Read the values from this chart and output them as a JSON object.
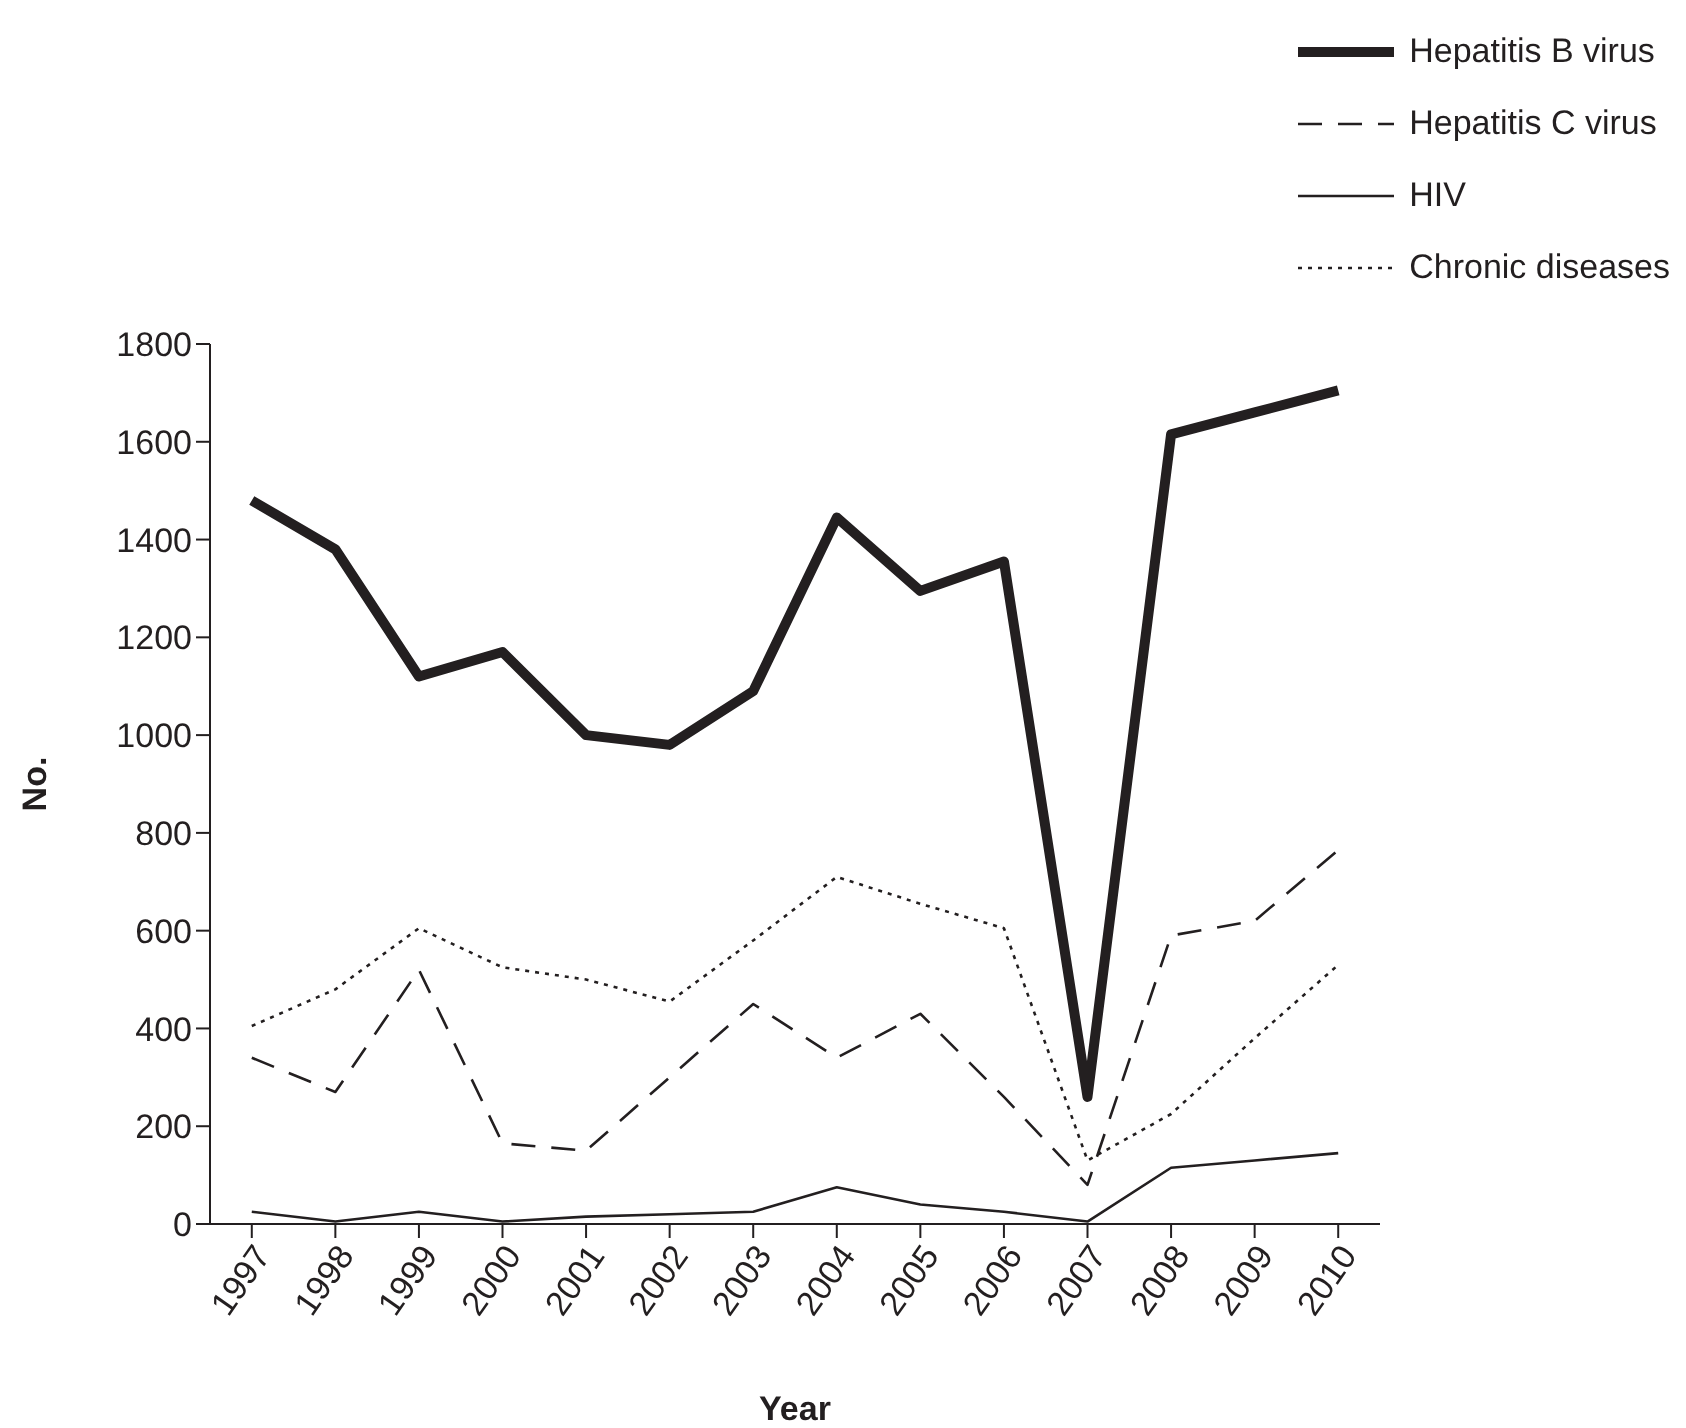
{
  "chart_data": {
    "type": "line",
    "xlabel": "Year",
    "ylabel": "No.",
    "categories": [
      "1997",
      "1998",
      "1999",
      "2000",
      "2001",
      "2002",
      "2003",
      "2004",
      "2005",
      "2006",
      "2007",
      "2008",
      "2009",
      "2010"
    ],
    "series": [
      {
        "name": "Hepatitis B virus",
        "color": "#231f20",
        "line_style": "solid",
        "values": [
          1480,
          1380,
          1120,
          1170,
          1000,
          980,
          1090,
          1445,
          1295,
          1355,
          260,
          1615,
          1660,
          1705
        ]
      },
      {
        "name": "Hepatitis C virus",
        "color": "#231f20",
        "line_style": "dashed",
        "values": [
          340,
          270,
          520,
          165,
          150,
          300,
          450,
          340,
          430,
          260,
          80,
          590,
          620,
          765
        ]
      },
      {
        "name": "HIV",
        "color": "#231f20",
        "line_style": "solid",
        "values": [
          25,
          5,
          25,
          5,
          15,
          20,
          25,
          75,
          40,
          25,
          5,
          115,
          130,
          145
        ]
      },
      {
        "name": "Chronic diseases",
        "color": "#231f20",
        "line_style": "dotted",
        "values": [
          405,
          480,
          605,
          525,
          500,
          455,
          580,
          710,
          655,
          605,
          130,
          225,
          380,
          530
        ]
      }
    ],
    "ylim": [
      0,
      1800
    ],
    "yticks": [
      0,
      200,
      400,
      600,
      800,
      1000,
      1200,
      1400,
      1600,
      1800
    ],
    "grid": false,
    "legend": "top right",
    "marker": "none"
  }
}
